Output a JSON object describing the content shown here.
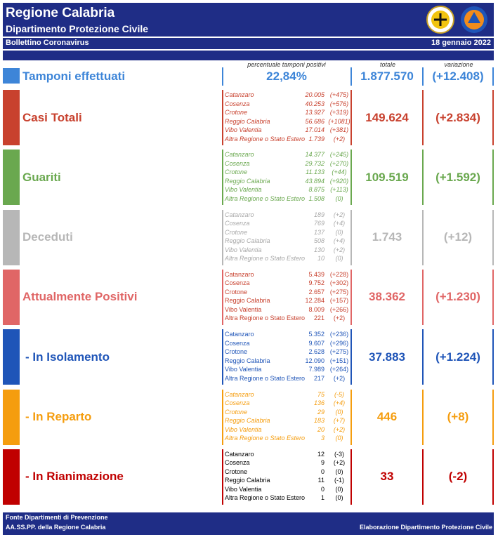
{
  "header": {
    "title": "Regione Calabria",
    "subtitle": "Dipartimento Protezione Civile",
    "bulletin": "Bollettino Coronavirus",
    "date": "18 gennaio 2022"
  },
  "columns": {
    "percent": "percentuale tamponi positivi",
    "total": "totale",
    "variation": "variazione"
  },
  "tamponi": {
    "label": "Tamponi effettuati",
    "percent": "22,84%",
    "total": "1.877.570",
    "variation": "(+12.408)",
    "color": "#3d85d8"
  },
  "sections": [
    {
      "label": "Casi Totali",
      "color": "#c8412e",
      "detail_color": "#c8412e",
      "italic": true,
      "total": "149.624",
      "variation": "(+2.834)",
      "rows": [
        [
          "Catanzaro",
          "20.005",
          "(+475)"
        ],
        [
          "Cosenza",
          "40.253",
          "(+576)"
        ],
        [
          "Crotone",
          "13.927",
          "(+319)"
        ],
        [
          "Reggio Calabria",
          "56.686",
          "(+1081)"
        ],
        [
          "Vibo Valentia",
          "17.014",
          "(+381)"
        ],
        [
          "Altra Regione o Stato Estero",
          "1.739",
          "(+2)"
        ]
      ]
    },
    {
      "label": "Guariti",
      "color": "#6aa84f",
      "detail_color": "#6aa84f",
      "italic": true,
      "total": "109.519",
      "variation": "(+1.592)",
      "rows": [
        [
          "Catanzaro",
          "14.377",
          "(+245)"
        ],
        [
          "Cosenza",
          "29.732",
          "(+270)"
        ],
        [
          "Crotone",
          "11.133",
          "(+44)"
        ],
        [
          "Reggio Calabria",
          "43.894",
          "(+920)"
        ],
        [
          "Vibo Valentia",
          "8.875",
          "(+113)"
        ],
        [
          "Altra Regione o Stato Estero",
          "1.508",
          "(0)"
        ]
      ]
    },
    {
      "label": "Deceduti",
      "color": "#b7b7b7",
      "detail_color": "#a8a8a8",
      "italic": true,
      "total": "1.743",
      "variation": "(+12)",
      "rows": [
        [
          "Catanzaro",
          "189",
          "(+2)"
        ],
        [
          "Cosenza",
          "769",
          "(+4)"
        ],
        [
          "Crotone",
          "137",
          "(0)"
        ],
        [
          "Reggio Calabria",
          "508",
          "(+4)"
        ],
        [
          "Vibo Valentia",
          "130",
          "(+2)"
        ],
        [
          "Altra Regione o Stato Estero",
          "10",
          "(0)"
        ]
      ]
    },
    {
      "label": "Attualmente Positivi",
      "color": "#e06666",
      "detail_color": "#c8412e",
      "italic": false,
      "total": "38.362",
      "variation": "(+1.230)",
      "rows": [
        [
          "Catanzaro",
          "5.439",
          "(+228)"
        ],
        [
          "Cosenza",
          "9.752",
          "(+302)"
        ],
        [
          "Crotone",
          "2.657",
          "(+275)"
        ],
        [
          "Reggio Calabria",
          "12.284",
          "(+157)"
        ],
        [
          "Vibo Valentia",
          "8.009",
          "(+266)"
        ],
        [
          "Altra Regione o Stato Estero",
          "221",
          "(+2)"
        ]
      ]
    },
    {
      "label": "- In Isolamento",
      "color": "#1f55b8",
      "detail_color": "#1f55b8",
      "italic": false,
      "total": "37.883",
      "variation": "(+1.224)",
      "rows": [
        [
          "Catanzaro",
          "5.352",
          "(+236)"
        ],
        [
          "Cosenza",
          "9.607",
          "(+296)"
        ],
        [
          "Crotone",
          "2.628",
          "(+275)"
        ],
        [
          "Reggio Calabria",
          "12.090",
          "(+151)"
        ],
        [
          "Vibo Valentia",
          "7.989",
          "(+264)"
        ],
        [
          "Altra Regione o Stato Estero",
          "217",
          "(+2)"
        ]
      ]
    },
    {
      "label": "- In Reparto",
      "color": "#f59d0e",
      "detail_color": "#f59d0e",
      "italic": true,
      "total": "446",
      "variation": "(+8)",
      "rows": [
        [
          "Catanzaro",
          "75",
          "(-5)"
        ],
        [
          "Cosenza",
          "136",
          "(+4)"
        ],
        [
          "Crotone",
          "29",
          "(0)"
        ],
        [
          "Reggio Calabria",
          "183",
          "(+7)"
        ],
        [
          "Vibo Valentia",
          "20",
          "(+2)"
        ],
        [
          "Altra Regione o Stato Estero",
          "3",
          "(0)"
        ]
      ]
    },
    {
      "label": "- In Rianimazione",
      "color": "#c00000",
      "detail_color": "#000000",
      "italic": false,
      "total": "33",
      "variation": "(-2)",
      "rows": [
        [
          "Catanzaro",
          "12",
          "(-3)"
        ],
        [
          "Cosenza",
          "9",
          "(+2)"
        ],
        [
          "Crotone",
          "0",
          "(0)"
        ],
        [
          "Reggio Calabria",
          "11",
          "(-1)"
        ],
        [
          "Vibo Valentia",
          "0",
          "(0)"
        ],
        [
          "Altra Regione o Stato Estero",
          "1",
          "(0)"
        ]
      ]
    }
  ],
  "footer": {
    "source_1": "Fonte Dipartimenti di Prevenzione",
    "source_2": "AA.SS.PP.  della Regione Calabria",
    "credit": "Elaborazione Dipartimento Protezione Civile"
  }
}
